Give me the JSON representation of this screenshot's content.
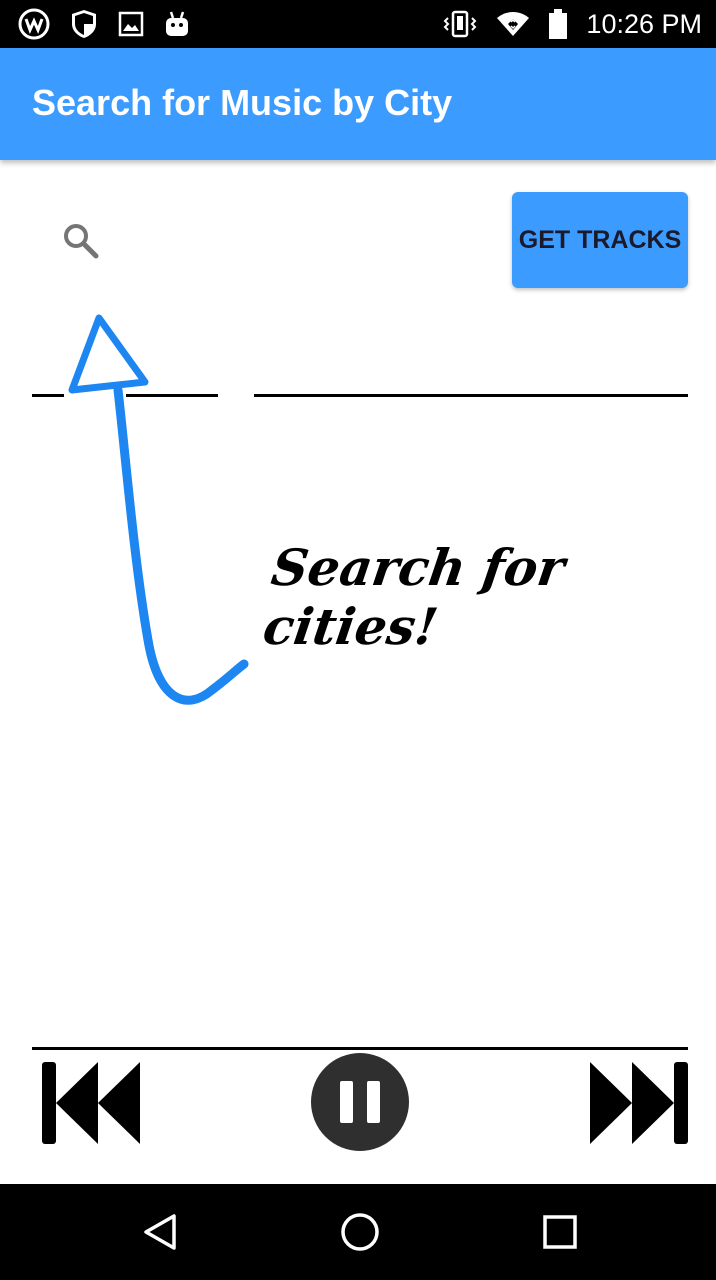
{
  "status_bar": {
    "time": "10:26 PM",
    "left_icons": [
      "app-logo-icon",
      "shield-icon",
      "image-icon",
      "android-icon"
    ],
    "right_icons": [
      "vibrate-icon",
      "wifi-icon",
      "battery-icon"
    ]
  },
  "app_bar": {
    "title": "Search for Music by City",
    "color": "#3c9bff"
  },
  "search": {
    "icon": "search-icon",
    "placeholder": "",
    "value": ""
  },
  "get_tracks_button": {
    "label": "GET TRACKS"
  },
  "hint": {
    "text": "Search for cities!",
    "arrow_color": "#1e86f0"
  },
  "player": {
    "prev_icon": "skip-previous-icon",
    "pause_icon": "pause-icon",
    "next_icon": "skip-next-icon"
  },
  "nav_bar": {
    "icons": [
      "back-icon",
      "home-icon",
      "recents-icon"
    ]
  }
}
